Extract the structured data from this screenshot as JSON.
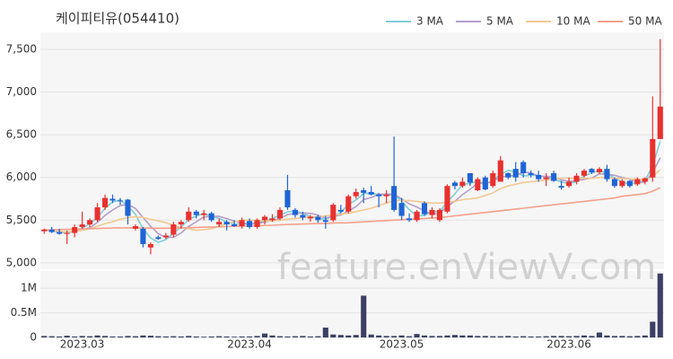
{
  "chart_data": {
    "type": "candlestick",
    "title": "케이피티유(054410)",
    "watermark": "feature.enViewV.com",
    "categories": [
      null,
      null,
      null,
      null,
      null,
      "2023.03",
      null,
      null,
      null,
      null,
      null,
      null,
      null,
      null,
      null,
      null,
      null,
      null,
      null,
      null,
      null,
      null,
      null,
      null,
      null,
      null,
      null,
      "2023.04",
      null,
      null,
      null,
      null,
      null,
      null,
      null,
      null,
      null,
      null,
      null,
      null,
      null,
      null,
      null,
      null,
      null,
      null,
      null,
      "2023.05",
      null,
      null,
      null,
      null,
      null,
      null,
      null,
      null,
      null,
      null,
      null,
      null,
      null,
      null,
      null,
      null,
      null,
      null,
      null,
      null,
      null,
      "2023.06",
      null,
      null,
      null,
      null,
      null,
      null,
      null,
      null,
      null,
      null,
      null,
      null
    ],
    "open": [
      5370,
      5390,
      5360,
      5340,
      5350,
      5420,
      5450,
      5500,
      5650,
      5750,
      5730,
      5740,
      5400,
      5400,
      5180,
      5300,
      5300,
      5330,
      5450,
      5500,
      5600,
      5560,
      5580,
      5450,
      5480,
      5450,
      5430,
      5490,
      5420,
      5500,
      5500,
      5520,
      5850,
      5620,
      5560,
      5520,
      5540,
      5500,
      5500,
      5620,
      5600,
      5780,
      5850,
      5830,
      5800,
      5780,
      5900,
      5700,
      5520,
      5500,
      5700,
      5560,
      5500,
      5600,
      5940,
      5900,
      6050,
      5850,
      6000,
      5900,
      5950,
      6050,
      6100,
      6180,
      6050,
      6030,
      5980,
      6050,
      5900,
      5900,
      5950,
      6020,
      6100,
      6060,
      6100,
      5980,
      5900,
      5960,
      5920,
      5950,
      6000,
      6450
    ],
    "high": [
      5400,
      5420,
      5400,
      5380,
      5450,
      5600,
      5520,
      5700,
      5800,
      5800,
      5760,
      5750,
      5450,
      5420,
      5240,
      5320,
      5350,
      5480,
      5500,
      5650,
      5620,
      5620,
      5600,
      5520,
      5500,
      5500,
      5530,
      5520,
      5520,
      5560,
      5570,
      5650,
      6030,
      5640,
      5600,
      5560,
      5560,
      5550,
      5700,
      5680,
      5800,
      5870,
      5880,
      5900,
      5820,
      5850,
      6480,
      5760,
      5580,
      5620,
      5720,
      5650,
      5640,
      5920,
      5960,
      6000,
      6050,
      6000,
      6020,
      6080,
      6250,
      6060,
      6180,
      6200,
      6080,
      6080,
      6050,
      6080,
      5960,
      6000,
      6050,
      6100,
      6110,
      6120,
      6150,
      6000,
      5980,
      5970,
      6000,
      6000,
      6950,
      7620
    ],
    "low": [
      5340,
      5350,
      5330,
      5220,
      5300,
      5400,
      5420,
      5480,
      5620,
      5700,
      5680,
      5450,
      5380,
      5180,
      5100,
      5270,
      5280,
      5300,
      5400,
      5480,
      5520,
      5500,
      5480,
      5420,
      5380,
      5420,
      5400,
      5400,
      5400,
      5450,
      5480,
      5500,
      5620,
      5530,
      5500,
      5480,
      5470,
      5400,
      5480,
      5580,
      5580,
      5750,
      5700,
      5790,
      5650,
      5700,
      5600,
      5500,
      5480,
      5480,
      5550,
      5520,
      5480,
      5580,
      5860,
      5880,
      5900,
      5840,
      5850,
      5880,
      5950,
      5980,
      5950,
      6000,
      6000,
      5950,
      5900,
      5950,
      5860,
      5880,
      5920,
      6000,
      6040,
      6040,
      5950,
      5880,
      5880,
      5880,
      5900,
      5920,
      5950,
      6450
    ],
    "close": [
      5390,
      5360,
      5340,
      5350,
      5420,
      5450,
      5500,
      5650,
      5760,
      5730,
      5720,
      5550,
      5430,
      5220,
      5220,
      5280,
      5320,
      5450,
      5480,
      5600,
      5560,
      5580,
      5500,
      5480,
      5450,
      5430,
      5500,
      5420,
      5500,
      5540,
      5520,
      5620,
      5650,
      5560,
      5530,
      5540,
      5500,
      5480,
      5680,
      5600,
      5780,
      5830,
      5820,
      5800,
      5780,
      5800,
      5620,
      5550,
      5500,
      5600,
      5570,
      5620,
      5620,
      5900,
      5900,
      5950,
      5940,
      5980,
      5860,
      6050,
      6200,
      6000,
      6000,
      6050,
      6030,
      5980,
      6000,
      5960,
      5880,
      5950,
      6020,
      6080,
      6060,
      6100,
      5980,
      5900,
      5960,
      5900,
      5980,
      5990,
      6450,
      6830
    ],
    "up_color": "#e8312f",
    "down_color": "#1f64d6",
    "series": [
      {
        "name": "3 MA",
        "color": "#7fcfd6",
        "values": [
          5390,
          5375,
          5363,
          5350,
          5370,
          5407,
          5457,
          5533,
          5637,
          5713,
          5737,
          5667,
          5567,
          5400,
          5290,
          5240,
          5273,
          5350,
          5417,
          5510,
          5547,
          5580,
          5547,
          5520,
          5477,
          5453,
          5460,
          5450,
          5473,
          5487,
          5520,
          5560,
          5597,
          5610,
          5580,
          5543,
          5523,
          5507,
          5553,
          5587,
          5687,
          5737,
          5810,
          5817,
          5800,
          5793,
          5800,
          5723,
          5623,
          5550,
          5557,
          5597,
          5603,
          5713,
          5807,
          5917,
          5930,
          5957,
          5927,
          5963,
          6037,
          6083,
          6067,
          6017,
          6027,
          6020,
          6003,
          5980,
          5947,
          5930,
          5950,
          6017,
          6053,
          6080,
          6047,
          5993,
          5947,
          5920,
          5947,
          5957,
          6140,
          6423
        ]
      },
      {
        "name": "5 MA",
        "color": "#b49ec9",
        "values": [
          5390,
          5375,
          5363,
          5360,
          5372,
          5384,
          5412,
          5474,
          5556,
          5618,
          5672,
          5682,
          5638,
          5530,
          5428,
          5340,
          5298,
          5298,
          5350,
          5426,
          5482,
          5538,
          5544,
          5544,
          5518,
          5488,
          5472,
          5456,
          5460,
          5478,
          5496,
          5520,
          5566,
          5578,
          5584,
          5580,
          5560,
          5522,
          5546,
          5560,
          5608,
          5658,
          5742,
          5766,
          5802,
          5806,
          5804,
          5750,
          5690,
          5654,
          5608,
          5568,
          5582,
          5662,
          5722,
          5798,
          5862,
          5934,
          5926,
          5956,
          6006,
          6018,
          6022,
          6060,
          6056,
          6012,
          6012,
          6004,
          5970,
          5954,
          5962,
          5978,
          5994,
          6042,
          6038,
          6024,
          6000,
          5980,
          5944,
          5946,
          6056,
          6230
        ]
      },
      {
        "name": "10 MA",
        "color": "#f2c992",
        "values": [
          5390,
          5380,
          5370,
          5360,
          5370,
          5380,
          5400,
          5430,
          5460,
          5480,
          5510,
          5530,
          5540,
          5530,
          5510,
          5490,
          5470,
          5440,
          5410,
          5400,
          5380,
          5390,
          5400,
          5430,
          5460,
          5480,
          5500,
          5500,
          5500,
          5490,
          5490,
          5500,
          5510,
          5520,
          5530,
          5540,
          5540,
          5550,
          5560,
          5570,
          5580,
          5600,
          5620,
          5640,
          5670,
          5700,
          5730,
          5730,
          5730,
          5720,
          5710,
          5700,
          5700,
          5710,
          5720,
          5740,
          5750,
          5760,
          5790,
          5820,
          5870,
          5900,
          5920,
          5940,
          5950,
          5960,
          5970,
          5980,
          5990,
          5990,
          5990,
          5990,
          5990,
          6000,
          6000,
          5990,
          5990,
          5980,
          5980,
          5970,
          6010,
          6090
        ]
      },
      {
        "name": "50 MA",
        "color": "#f4a08b",
        "values": [
          5380,
          5385,
          5390,
          5392,
          5395,
          5398,
          5400,
          5402,
          5405,
          5408,
          5410,
          5410,
          5410,
          5408,
          5405,
          5405,
          5405,
          5408,
          5410,
          5412,
          5415,
          5418,
          5420,
          5422,
          5425,
          5428,
          5430,
          5432,
          5435,
          5438,
          5440,
          5445,
          5450,
          5452,
          5455,
          5458,
          5460,
          5462,
          5465,
          5468,
          5470,
          5475,
          5480,
          5485,
          5490,
          5495,
          5500,
          5505,
          5510,
          5515,
          5520,
          5525,
          5530,
          5540,
          5550,
          5560,
          5570,
          5580,
          5590,
          5600,
          5610,
          5620,
          5630,
          5640,
          5650,
          5660,
          5670,
          5680,
          5690,
          5700,
          5710,
          5720,
          5730,
          5740,
          5750,
          5760,
          5780,
          5790,
          5800,
          5810,
          5840,
          5880
        ]
      }
    ],
    "ylim": [
      4925,
      7700
    ],
    "yticks": [
      {
        "value": 5000,
        "label": "5,000"
      },
      {
        "value": 5500,
        "label": "5,500"
      },
      {
        "value": 6000,
        "label": "6,000"
      },
      {
        "value": 6500,
        "label": "6,500"
      },
      {
        "value": 7000,
        "label": "7,000"
      },
      {
        "value": 7500,
        "label": "7,500"
      }
    ],
    "volume": {
      "color": "#3b3f63",
      "ylim": [
        0,
        1350000
      ],
      "yticks": [
        0,
        {
          "value": 500000,
          "label": "0.5M"
        },
        {
          "value": 1000000,
          "label": "1M"
        }
      ],
      "values": [
        30000,
        25000,
        20000,
        35000,
        20000,
        30000,
        25000,
        40000,
        30000,
        20000,
        20000,
        30000,
        25000,
        40000,
        35000,
        25000,
        20000,
        25000,
        20000,
        30000,
        20000,
        15000,
        20000,
        25000,
        20000,
        15000,
        20000,
        20000,
        30000,
        80000,
        40000,
        25000,
        20000,
        25000,
        30000,
        20000,
        25000,
        200000,
        60000,
        50000,
        40000,
        50000,
        850000,
        60000,
        40000,
        30000,
        30000,
        40000,
        25000,
        70000,
        40000,
        30000,
        30000,
        40000,
        50000,
        40000,
        40000,
        30000,
        30000,
        25000,
        25000,
        30000,
        20000,
        25000,
        20000,
        20000,
        25000,
        30000,
        30000,
        25000,
        30000,
        40000,
        30000,
        100000,
        40000,
        30000,
        30000,
        25000,
        30000,
        40000,
        320000,
        1300000
      ]
    },
    "grid": true
  }
}
